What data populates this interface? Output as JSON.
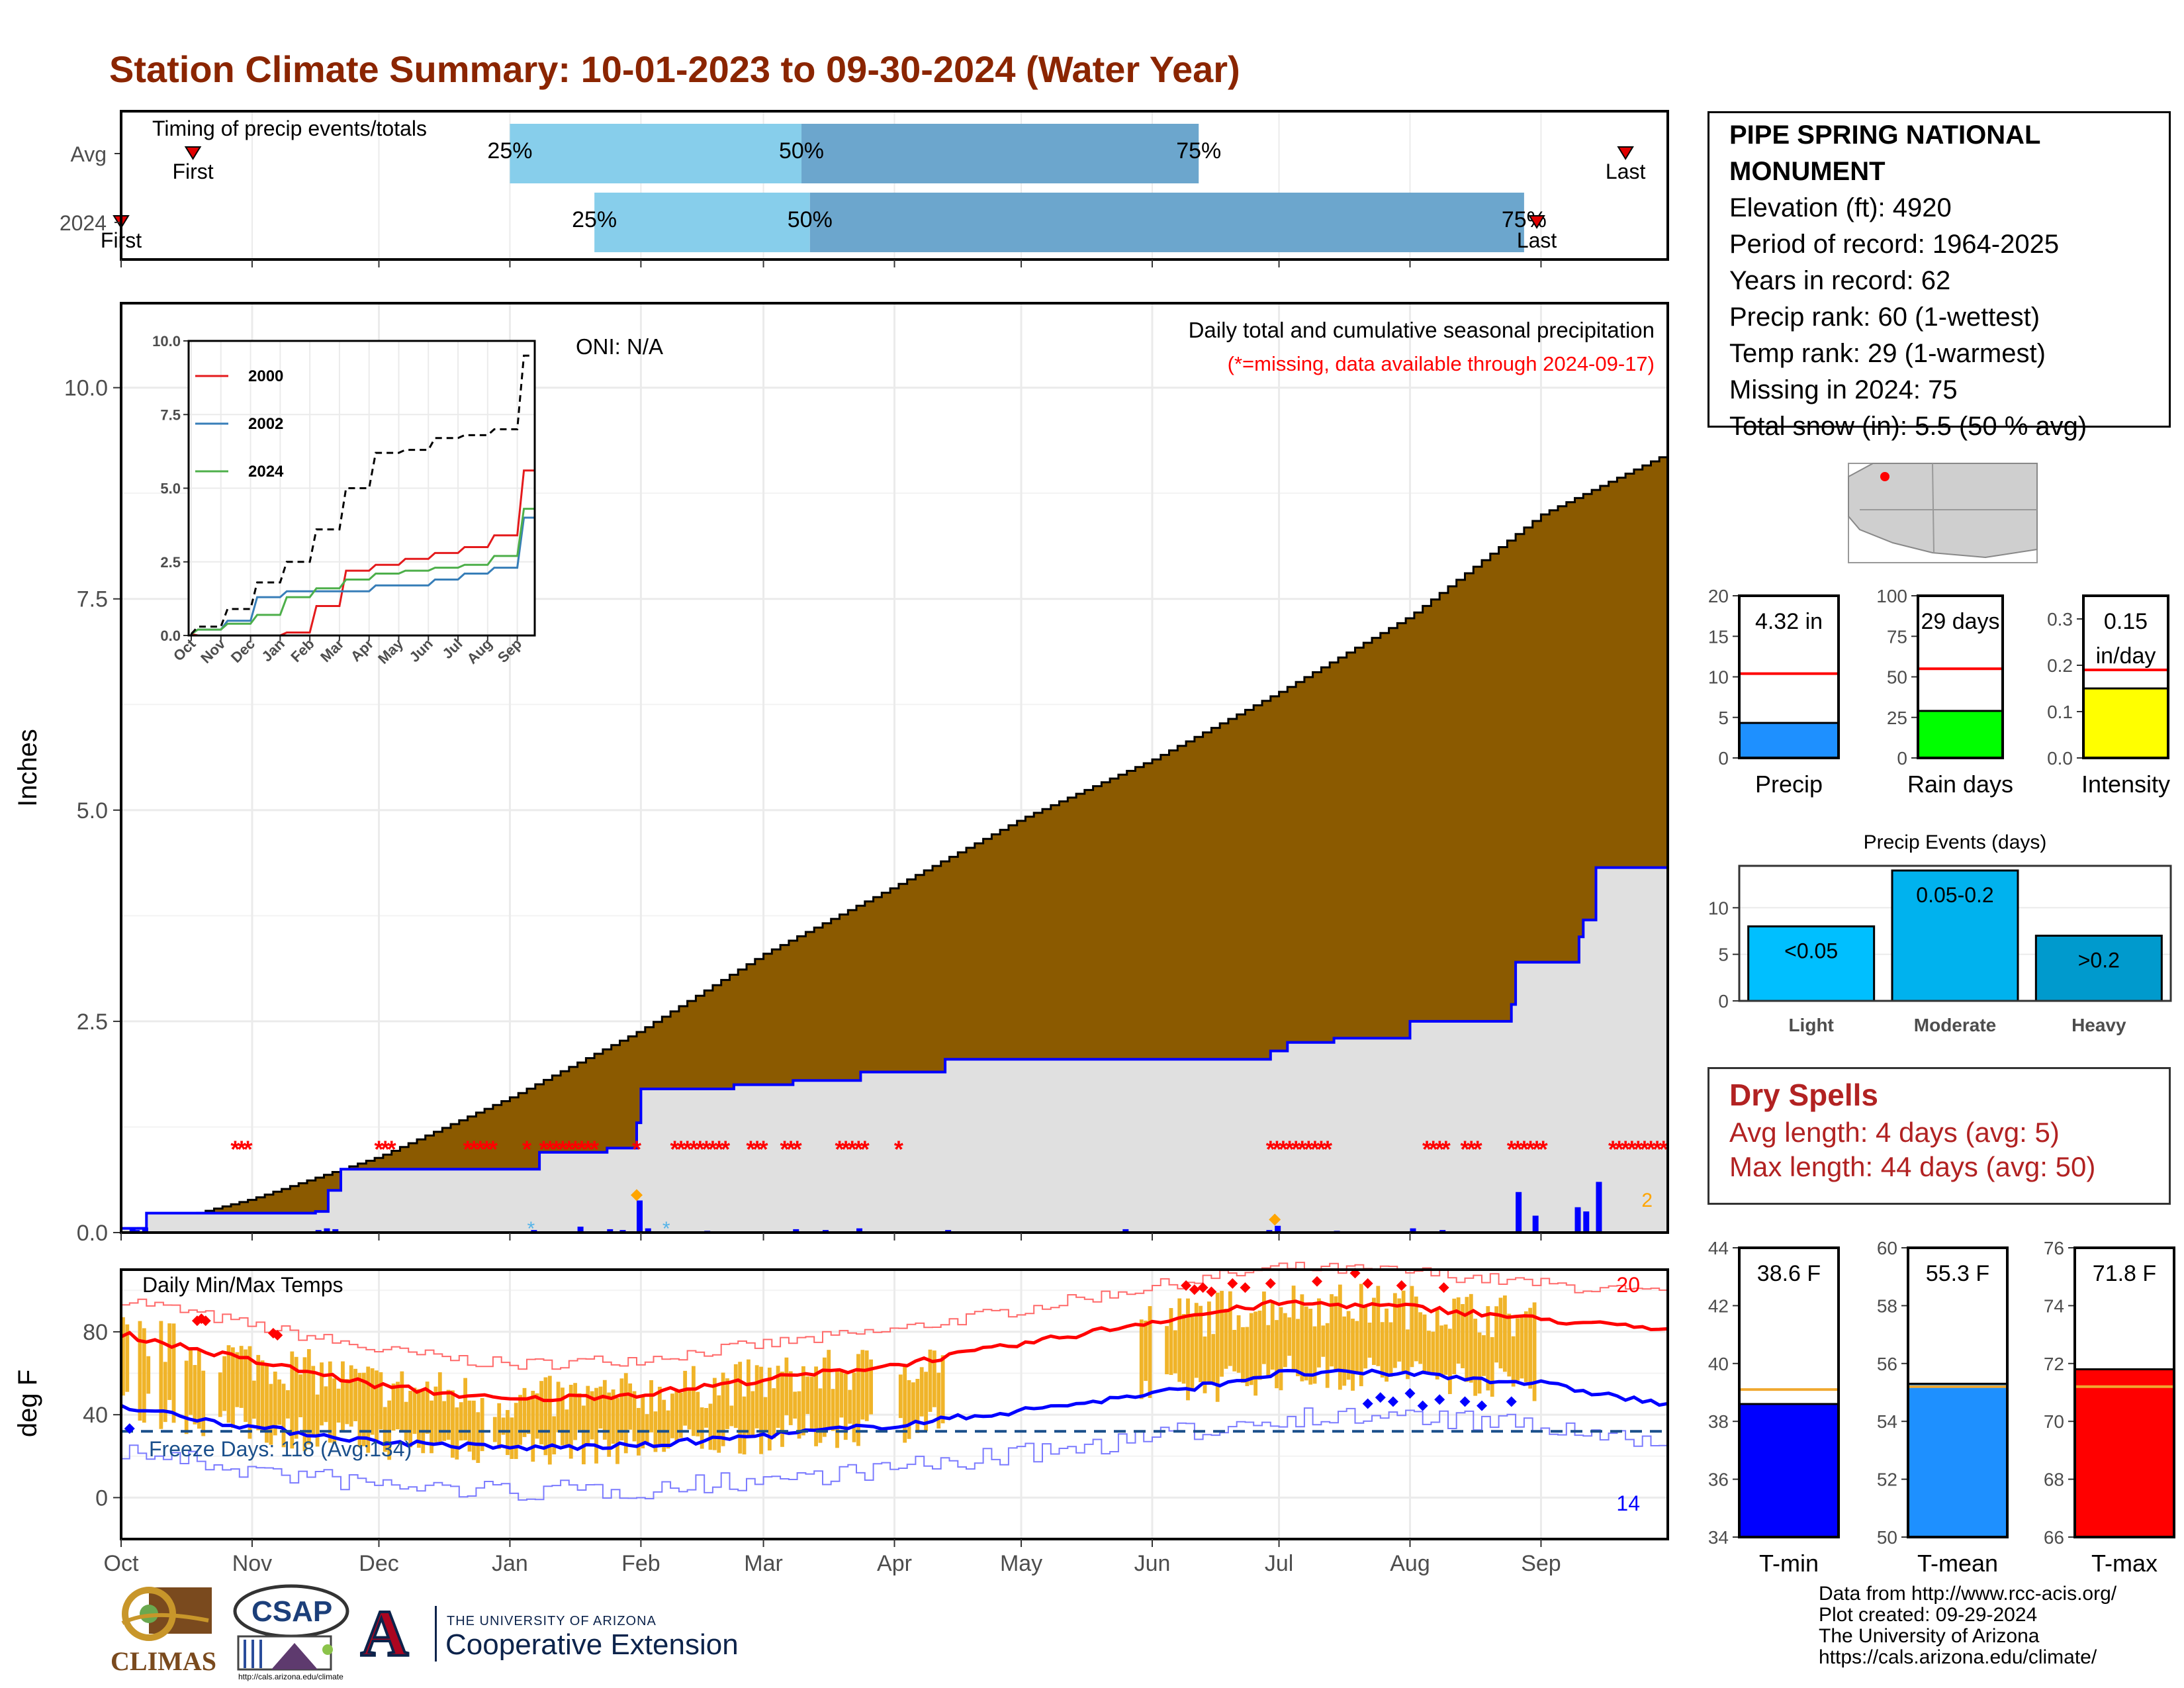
{
  "title": "Station Climate Summary: 10-01-2023 to 09-30-2024 (Water Year)",
  "station": {
    "name": "PIPE SPRING NATIONAL MONUMENT",
    "elevation": "Elevation (ft): 4920",
    "period": "Period of record: 1964-2025",
    "years": "Years in record: 62",
    "precip_rank": "Precip rank: 60 (1-wettest)",
    "temp_rank": "Temp rank: 29 (1-warmest)",
    "missing": "Missing in 2024: 75",
    "snow": "Total snow (in): 5.5 (50 % avg)"
  },
  "dry_spells": {
    "heading": "Dry Spells",
    "avg": "Avg length: 4 days (avg: 5)",
    "max": "Max length: 44 days (avg: 50)"
  },
  "credits": [
    "Data from http://www.rcc-acis.org/",
    "Plot created: 09-29-2024",
    "The University of Arizona",
    "https://cals.arizona.edu/climate/"
  ],
  "logos": {
    "climas": "CLIMAS",
    "csap": "CSAP",
    "csap_url": "http://cals.arizona.edu/climate",
    "ua_small": "THE UNIVERSITY OF ARIZONA",
    "ua_big": "Cooperative Extension",
    "ua_letter": "A"
  },
  "colors": {
    "title": "#8b2500",
    "precip_fill": "#8b5a00",
    "avg_fill": "#e0e0e0",
    "avg_line": "#0000ff",
    "missing": "#ff0000",
    "tmax_line": "#ff0000",
    "tmin_line": "#0000ff",
    "temp_bar": "#f0b429",
    "timing_light": "#87ceeb",
    "timing_dark": "#6ca6cd"
  },
  "chart_data": [
    {
      "type": "bar",
      "id": "timing",
      "title": "Timing of precip events/totals",
      "categories": [
        "Avg",
        "2024"
      ],
      "series": [
        {
          "name": "Avg",
          "first": "Oct 18",
          "p25": "Jan 1",
          "p50": "Mar 10",
          "p75": "Jun 12",
          "last": "Sep 21"
        },
        {
          "name": "2024",
          "first": "Oct 1",
          "p25": "Jan 21",
          "p50": "Mar 12",
          "p75": "Aug 28",
          "last": "Aug 31"
        }
      ],
      "labels": {
        "first": "First",
        "last": "Last",
        "p25": "25%",
        "p50": "50%",
        "p75": "75%"
      }
    },
    {
      "type": "area",
      "id": "precip",
      "title": "Daily total and cumulative seasonal precipitation",
      "subtitle": "(*=missing, data available through 2024-09-17)",
      "oni": "ONI: N/A",
      "ylabel": "Inches",
      "ylim": [
        0,
        11
      ],
      "yticks": [
        "0.0",
        "2.5",
        "5.0",
        "7.5",
        "10.0"
      ],
      "months": [
        "Oct",
        "Nov",
        "Dec",
        "Jan",
        "Feb",
        "Mar",
        "Apr",
        "May",
        "Jun",
        "Jul",
        "Aug",
        "Sep"
      ],
      "avg_cumulative": {
        "dates": [
          "Oct 1",
          "Nov 1",
          "Dec 1",
          "Jan 1",
          "Feb 1",
          "Mar 1",
          "Apr 1",
          "May 1",
          "Jun 1",
          "Jul 1",
          "Aug 1",
          "Sep 1",
          "Sep 30"
        ],
        "values": [
          0.0,
          0.4,
          0.9,
          1.6,
          2.4,
          3.3,
          4.1,
          4.9,
          5.6,
          6.4,
          7.3,
          8.5,
          9.2
        ]
      },
      "total_2024": 4.32,
      "end_label": "2",
      "missing_day_count": 75
    },
    {
      "type": "line",
      "id": "inset",
      "categories": [
        "Oct",
        "Nov",
        "Dec",
        "Jan",
        "Feb",
        "Mar",
        "Apr",
        "May",
        "Jun",
        "Jul",
        "Aug",
        "Sep"
      ],
      "ylim": [
        0,
        10
      ],
      "yticks": [
        "0.0",
        "2.5",
        "5.0",
        "7.5",
        "10.0"
      ],
      "series": [
        {
          "name": "2000",
          "color": "#e41a1c",
          "values": [
            0.0,
            0.0,
            0.0,
            0.1,
            1.0,
            2.2,
            2.4,
            2.6,
            2.8,
            3.0,
            3.4,
            5.6
          ]
        },
        {
          "name": "2002",
          "color": "#377eb8",
          "values": [
            0.2,
            0.5,
            1.3,
            1.5,
            1.5,
            1.5,
            1.7,
            1.7,
            1.9,
            2.1,
            2.3,
            4.0
          ]
        },
        {
          "name": "2024",
          "color": "#4daf4a",
          "values": [
            0.2,
            0.4,
            0.7,
            1.3,
            1.6,
            1.9,
            2.1,
            2.2,
            2.3,
            2.4,
            2.7,
            4.3
          ]
        },
        {
          "name": "Avg",
          "values": [
            0.3,
            0.9,
            1.8,
            2.5,
            3.6,
            5.0,
            6.2,
            6.3,
            6.7,
            6.8,
            7.0,
            9.5
          ]
        }
      ]
    },
    {
      "type": "bar",
      "id": "precip-total",
      "xlabel": "Precip",
      "ylim": [
        0,
        20
      ],
      "yticks": [
        "0",
        "5",
        "10",
        "15",
        "20"
      ],
      "value": 4.32,
      "avg": 10.4,
      "label": "4.32 in"
    },
    {
      "type": "bar",
      "id": "rain-days",
      "xlabel": "Rain days",
      "ylim": [
        0,
        100
      ],
      "yticks": [
        "0",
        "25",
        "50",
        "75",
        "100"
      ],
      "value": 29,
      "avg": 55,
      "label": "29 days"
    },
    {
      "type": "bar",
      "id": "intensity",
      "xlabel": "Intensity",
      "ylim": [
        0,
        0.35
      ],
      "yticks": [
        "0.0",
        "0.1",
        "0.2",
        "0.3"
      ],
      "value": 0.15,
      "avg": 0.19,
      "label": "0.15",
      "label2": "in/day"
    },
    {
      "type": "bar",
      "id": "events",
      "title": "Precip Events (days)",
      "categories": [
        "Light",
        "Moderate",
        "Heavy"
      ],
      "values": [
        8,
        14,
        7
      ],
      "bar_labels": [
        "<0.05",
        "0.05-0.2",
        ">0.2"
      ],
      "ylim": [
        0,
        14.5
      ],
      "yticks": [
        "0",
        "5",
        "10"
      ]
    },
    {
      "type": "bar",
      "id": "temps",
      "title": "Daily Min/Max Temps",
      "ylabel": "deg F",
      "ylim": [
        -20,
        110
      ],
      "yticks": [
        "0",
        "40",
        "80"
      ],
      "months": [
        "Oct",
        "Nov",
        "Dec",
        "Jan",
        "Feb",
        "Mar",
        "Apr",
        "May",
        "Jun",
        "Jul",
        "Aug",
        "Sep"
      ],
      "freeze_label": "Freeze Days: 118 (Avg:134)",
      "freeze_line": 32,
      "count_hot": "20",
      "count_cold": "14",
      "avg_max": {
        "dates": [
          "Oct 1",
          "Nov 1",
          "Dec 1",
          "Jan 1",
          "Feb 1",
          "Mar 1",
          "Apr 1",
          "May 1",
          "Jun 1",
          "Jul 1",
          "Aug 1",
          "Sep 1",
          "Sep 30"
        ],
        "values": [
          79,
          66,
          54,
          47,
          50,
          57,
          64,
          74,
          85,
          94,
          92,
          86,
          81
        ]
      },
      "avg_min": {
        "dates": [
          "Oct 1",
          "Nov 1",
          "Dec 1",
          "Jan 1",
          "Feb 1",
          "Mar 1",
          "Apr 1",
          "May 1",
          "Jun 1",
          "Jul 1",
          "Aug 1",
          "Sep 1",
          "Sep 30"
        ],
        "values": [
          44,
          34,
          27,
          24,
          25,
          30,
          35,
          42,
          50,
          60,
          60,
          55,
          45
        ]
      }
    },
    {
      "type": "bar",
      "id": "tmin",
      "xlabel": "T-min",
      "ylim": [
        34,
        44
      ],
      "yticks": [
        "34",
        "36",
        "38",
        "40",
        "42",
        "44"
      ],
      "value": 38.6,
      "avg": 39.1,
      "label": "38.6 F"
    },
    {
      "type": "bar",
      "id": "tmean",
      "xlabel": "T-mean",
      "ylim": [
        50,
        60
      ],
      "yticks": [
        "50",
        "52",
        "54",
        "56",
        "58",
        "60"
      ],
      "value": 55.3,
      "avg": 55.2,
      "label": "55.3 F"
    },
    {
      "type": "bar",
      "id": "tmax",
      "xlabel": "T-max",
      "ylim": [
        66,
        76
      ],
      "yticks": [
        "66",
        "68",
        "70",
        "72",
        "74",
        "76"
      ],
      "value": 71.8,
      "avg": 71.2,
      "label": "71.8 F"
    }
  ]
}
